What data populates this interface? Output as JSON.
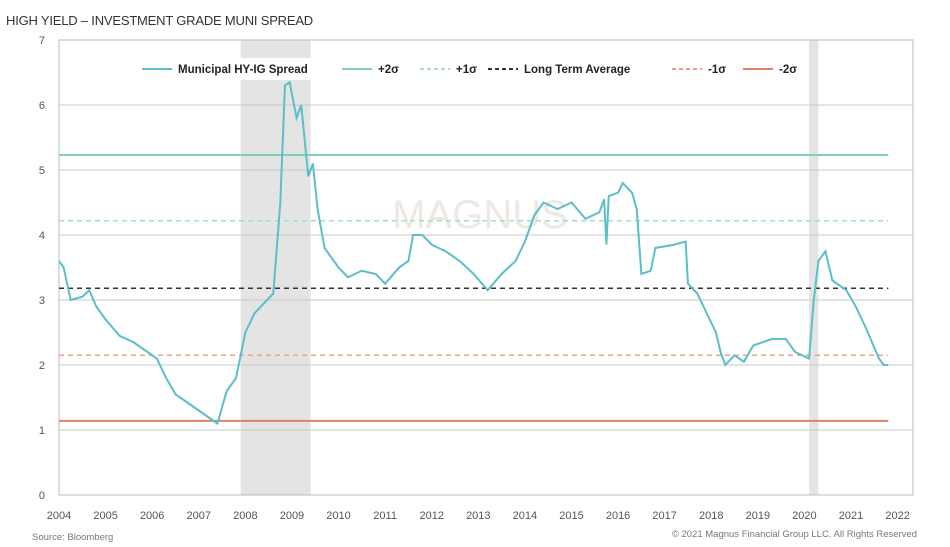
{
  "chart_data": {
    "type": "line",
    "title": "HIGH YIELD – INVESTMENT GRADE MUNI SPREAD",
    "xlabel": "",
    "ylabel": "",
    "xlim": [
      2004,
      2022.33
    ],
    "ylim": [
      0,
      7
    ],
    "x_ticks": [
      "2004",
      "2005",
      "2006",
      "2007",
      "2008",
      "2009",
      "2010",
      "2011",
      "2012",
      "2013",
      "2014",
      "2015",
      "2016",
      "2017",
      "2018",
      "2019",
      "2020",
      "2021",
      "2022"
    ],
    "y_ticks": [
      "0",
      "1",
      "2",
      "3",
      "4",
      "5",
      "6",
      "7"
    ],
    "grid": true,
    "legend_position": "top",
    "shaded_periods": [
      [
        2007.9,
        2009.4
      ],
      [
        2020.1,
        2020.3
      ]
    ],
    "reference_lines": [
      {
        "name": "+2σ",
        "value": 5.23,
        "color": "#7fcfb0",
        "style": "solid"
      },
      {
        "name": "+1σ",
        "value": 4.22,
        "color": "#a8dcc8",
        "style": "dashed"
      },
      {
        "name": "Long Term Average",
        "value": 3.18,
        "color": "#333333",
        "style": "dashed"
      },
      {
        "name": "-1σ",
        "value": 2.15,
        "color": "#f0a08a",
        "style": "dashed"
      },
      {
        "name": "-2σ",
        "value": 1.14,
        "color": "#e0806a",
        "style": "solid"
      }
    ],
    "series": [
      {
        "name": "Municipal HY-IG Spread",
        "color": "#5bbfc8",
        "x": [
          2004.0,
          2004.1,
          2004.25,
          2004.5,
          2004.65,
          2004.8,
          2005.0,
          2005.3,
          2005.6,
          2005.9,
          2006.1,
          2006.3,
          2006.5,
          2006.8,
          2007.0,
          2007.2,
          2007.4,
          2007.6,
          2007.8,
          2008.0,
          2008.2,
          2008.4,
          2008.6,
          2008.75,
          2008.85,
          2008.95,
          2009.1,
          2009.2,
          2009.35,
          2009.45,
          2009.55,
          2009.7,
          2010.0,
          2010.2,
          2010.5,
          2010.8,
          2011.0,
          2011.3,
          2011.5,
          2011.6,
          2011.8,
          2012.0,
          2012.3,
          2012.6,
          2012.9,
          2013.2,
          2013.5,
          2013.8,
          2014.0,
          2014.2,
          2014.4,
          2014.7,
          2015.0,
          2015.3,
          2015.6,
          2015.7,
          2015.75,
          2015.8,
          2016.0,
          2016.1,
          2016.3,
          2016.4,
          2016.5,
          2016.7,
          2016.8,
          2017.2,
          2017.45,
          2017.5,
          2017.7,
          2017.9,
          2018.1,
          2018.2,
          2018.3,
          2018.5,
          2018.7,
          2018.9,
          2019.3,
          2019.6,
          2019.8,
          2020.1,
          2020.2,
          2020.3,
          2020.45,
          2020.6,
          2020.9,
          2021.1,
          2021.3,
          2021.45,
          2021.6,
          2021.7,
          2021.8
        ],
        "y": [
          3.6,
          3.5,
          3.0,
          3.05,
          3.15,
          2.9,
          2.7,
          2.45,
          2.35,
          2.2,
          2.1,
          1.8,
          1.55,
          1.4,
          1.3,
          1.2,
          1.1,
          1.6,
          1.8,
          2.5,
          2.8,
          2.95,
          3.1,
          4.5,
          6.3,
          6.35,
          5.8,
          6.0,
          4.9,
          5.1,
          4.4,
          3.8,
          3.5,
          3.35,
          3.45,
          3.4,
          3.25,
          3.5,
          3.6,
          4.0,
          4.0,
          3.85,
          3.75,
          3.6,
          3.4,
          3.15,
          3.4,
          3.6,
          3.9,
          4.3,
          4.5,
          4.4,
          4.5,
          4.25,
          4.35,
          4.55,
          3.85,
          4.6,
          4.65,
          4.8,
          4.65,
          4.4,
          3.4,
          3.45,
          3.8,
          3.85,
          3.9,
          3.25,
          3.1,
          2.8,
          2.5,
          2.2,
          2.0,
          2.15,
          2.05,
          2.3,
          2.4,
          2.4,
          2.2,
          2.1,
          3.0,
          3.6,
          3.75,
          3.3,
          3.15,
          2.9,
          2.6,
          2.35,
          2.1,
          2.0,
          2.0
        ]
      }
    ],
    "source": "Source: Bloomberg",
    "copyright": "© 2021 Magnus Financial Group LLC. All Rights Reserved",
    "watermark": "MAGNUS"
  }
}
